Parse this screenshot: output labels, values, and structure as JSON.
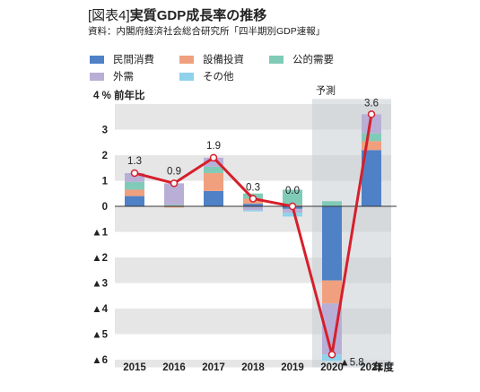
{
  "header": {
    "tag": "[図表4]",
    "title": "実質GDP成長率の推移",
    "source": "資料：内閣府経済社会総合研究所「四半期別GDP速報」"
  },
  "colors": {
    "民間消費": "#4f81c7",
    "設備投資": "#f0a07e",
    "公的需要": "#80cbb8",
    "外需": "#b9afd6",
    "その他": "#8fd2ec",
    "line": "#d61f2c",
    "band": "#e6e6e6"
  },
  "chart_data": {
    "type": "bar",
    "stacked": true,
    "categories": [
      "2015",
      "2016",
      "2017",
      "2018",
      "2019",
      "2020",
      "2021"
    ],
    "series": [
      {
        "name": "民間消費",
        "values": [
          0.4,
          0.0,
          0.6,
          0.1,
          -0.1,
          -2.9,
          2.2
        ]
      },
      {
        "name": "設備投資",
        "values": [
          0.25,
          -0.05,
          0.7,
          0.2,
          0.05,
          -0.9,
          0.35
        ]
      },
      {
        "name": "公的需要",
        "values": [
          0.3,
          0.05,
          0.25,
          0.2,
          0.6,
          0.2,
          0.3
        ]
      },
      {
        "name": "外需",
        "values": [
          0.35,
          0.85,
          0.35,
          -0.15,
          -0.15,
          -2.0,
          0.75
        ]
      },
      {
        "name": "その他",
        "values": [
          0.0,
          0.0,
          0.0,
          -0.05,
          -0.15,
          -0.25,
          0.0
        ]
      }
    ],
    "line": {
      "values": [
        1.3,
        0.9,
        1.9,
        0.3,
        0.0,
        -5.8,
        3.6
      ],
      "labels": [
        "1.3",
        "0.9",
        "1.9",
        "0.3",
        "0.0",
        "▲5.8",
        "3.6"
      ]
    },
    "ylabel": "4 % 前年比",
    "xunit": "年度",
    "forecast_label": "予測",
    "forecast_from": "2020",
    "ylim": [
      -6.3,
      4.2
    ],
    "yticks": [
      3,
      2,
      1,
      0,
      -1,
      -2,
      -3,
      -4,
      -5,
      -6
    ],
    "ytick_labels": [
      "3",
      "2",
      "1",
      "0",
      "▲1",
      "▲2",
      "▲3",
      "▲4",
      "▲5",
      "▲6"
    ],
    "grid": "alternating horizontal bands",
    "legend": "top"
  }
}
